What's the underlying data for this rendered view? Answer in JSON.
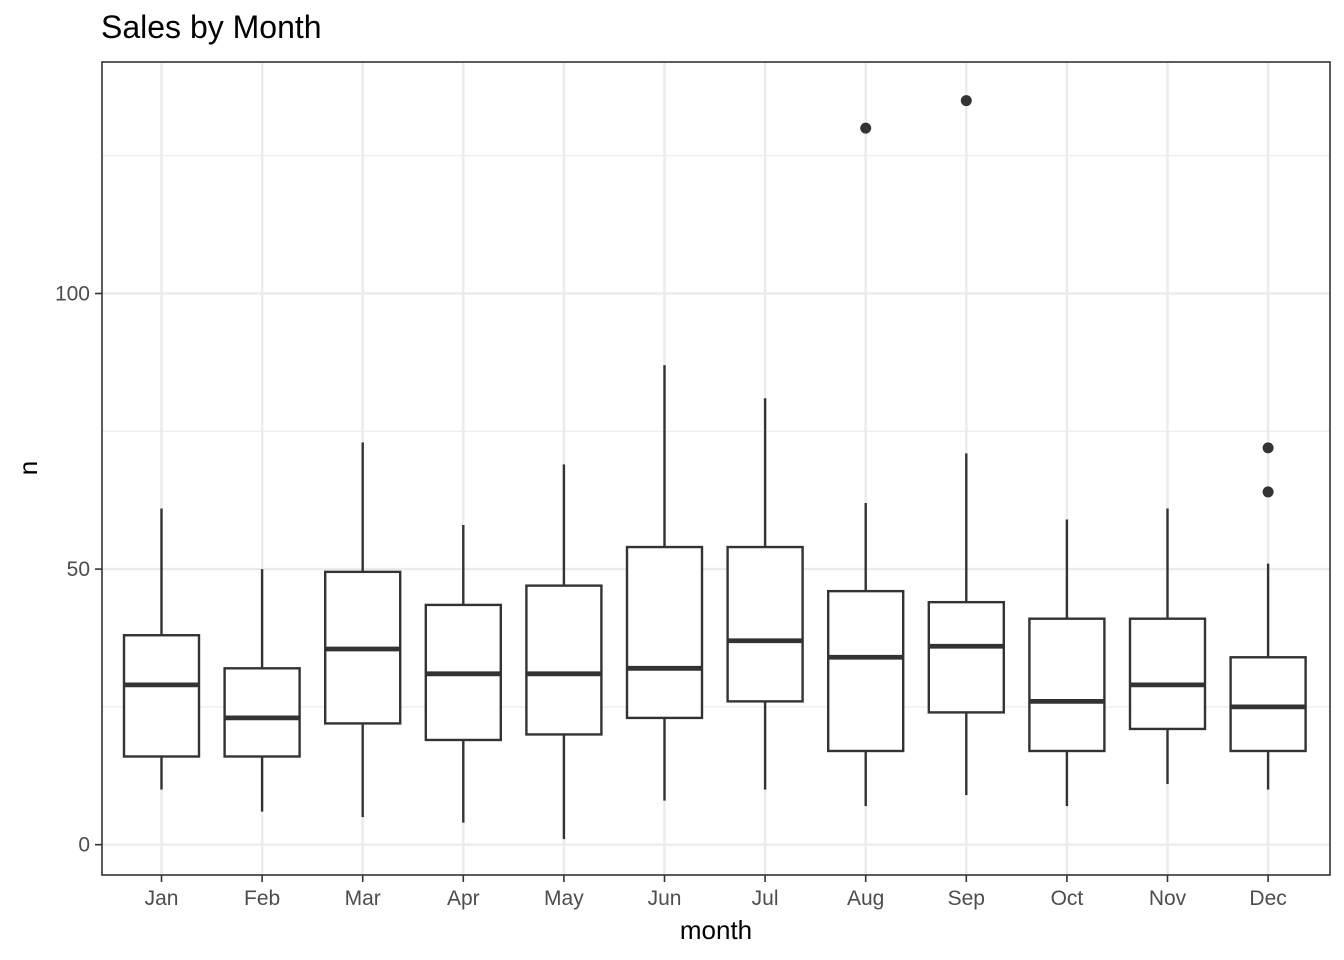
{
  "chart_data": {
    "type": "boxplot",
    "title": "Sales by Month",
    "xlabel": "month",
    "ylabel": "n",
    "categories": [
      "Jan",
      "Feb",
      "Mar",
      "Apr",
      "May",
      "Jun",
      "Jul",
      "Aug",
      "Sep",
      "Oct",
      "Nov",
      "Dec"
    ],
    "ylim": [
      -5.5,
      142
    ],
    "yticks": [
      0,
      50,
      100
    ],
    "ytick_labels": [
      "0",
      "50",
      "100"
    ],
    "grid": true,
    "boxes": [
      {
        "category": "Jan",
        "whisker_low": 10,
        "q1": 16,
        "median": 29,
        "q3": 38,
        "whisker_high": 61,
        "outliers": []
      },
      {
        "category": "Feb",
        "whisker_low": 6,
        "q1": 16,
        "median": 23,
        "q3": 32,
        "whisker_high": 50,
        "outliers": []
      },
      {
        "category": "Mar",
        "whisker_low": 5,
        "q1": 22,
        "median": 35.5,
        "q3": 49.5,
        "whisker_high": 73,
        "outliers": []
      },
      {
        "category": "Apr",
        "whisker_low": 4,
        "q1": 19,
        "median": 31,
        "q3": 43.5,
        "whisker_high": 58,
        "outliers": []
      },
      {
        "category": "May",
        "whisker_low": 1,
        "q1": 20,
        "median": 31,
        "q3": 47,
        "whisker_high": 69,
        "outliers": []
      },
      {
        "category": "Jun",
        "whisker_low": 8,
        "q1": 23,
        "median": 32,
        "q3": 54,
        "whisker_high": 87,
        "outliers": []
      },
      {
        "category": "Jul",
        "whisker_low": 10,
        "q1": 26,
        "median": 37,
        "q3": 54,
        "whisker_high": 81,
        "outliers": []
      },
      {
        "category": "Aug",
        "whisker_low": 7,
        "q1": 17,
        "median": 34,
        "q3": 46,
        "whisker_high": 62,
        "outliers": [
          130
        ]
      },
      {
        "category": "Sep",
        "whisker_low": 9,
        "q1": 24,
        "median": 36,
        "q3": 44,
        "whisker_high": 71,
        "outliers": [
          135
        ]
      },
      {
        "category": "Oct",
        "whisker_low": 7,
        "q1": 17,
        "median": 26,
        "q3": 41,
        "whisker_high": 59,
        "outliers": []
      },
      {
        "category": "Nov",
        "whisker_low": 11,
        "q1": 21,
        "median": 29,
        "q3": 41,
        "whisker_high": 61,
        "outliers": []
      },
      {
        "category": "Dec",
        "whisker_low": 10,
        "q1": 17,
        "median": 25,
        "q3": 34,
        "whisker_high": 51,
        "outliers": [
          64,
          72
        ]
      }
    ]
  }
}
